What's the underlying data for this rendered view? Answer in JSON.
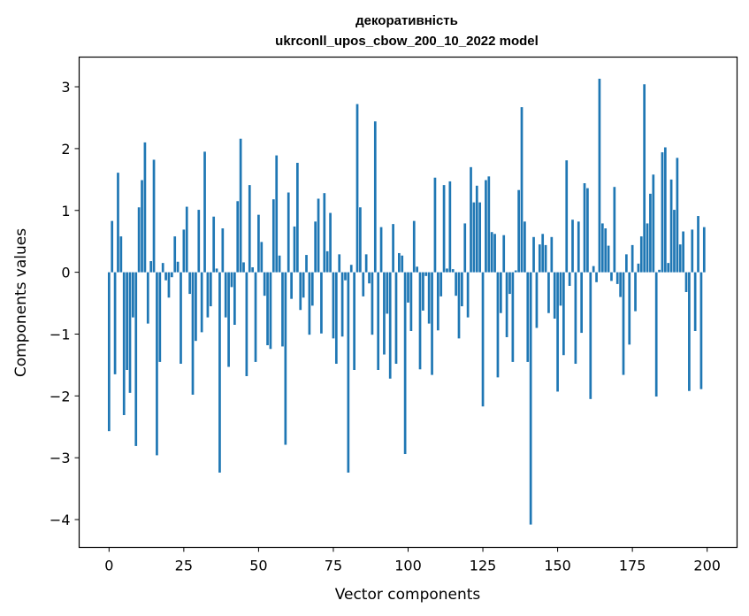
{
  "chart_data": {
    "type": "bar",
    "title": "декоративність",
    "subtitle": "ukrconll_upos_cbow_200_10_2022 model",
    "xlabel": "Vector components",
    "ylabel": "Components values",
    "xlim": [
      -10,
      210
    ],
    "ylim": [
      -4.45,
      3.48
    ],
    "xticks": [
      0,
      25,
      50,
      75,
      100,
      125,
      150,
      175,
      200
    ],
    "yticks": [
      -4,
      -3,
      -2,
      -1,
      0,
      1,
      2,
      3
    ],
    "grid": false,
    "color": "#1f77b4",
    "values": [
      -2.57,
      0.83,
      -1.65,
      1.61,
      0.58,
      -2.31,
      -1.58,
      -1.95,
      -0.73,
      -2.81,
      1.05,
      1.49,
      2.1,
      -0.83,
      0.18,
      1.82,
      -2.96,
      -1.45,
      0.15,
      -0.13,
      -0.41,
      -0.08,
      0.58,
      0.17,
      -1.48,
      0.69,
      1.06,
      -0.35,
      -1.98,
      -1.11,
      1.01,
      -0.97,
      1.95,
      -0.73,
      -0.55,
      0.9,
      0.06,
      -3.24,
      0.71,
      -0.73,
      -1.53,
      -0.24,
      -0.85,
      1.15,
      2.16,
      0.16,
      -1.68,
      1.41,
      0.08,
      -1.45,
      0.93,
      0.49,
      -0.38,
      -1.18,
      -1.24,
      1.18,
      1.89,
      0.27,
      -1.2,
      -2.79,
      1.29,
      -0.43,
      0.74,
      1.77,
      -0.61,
      -0.41,
      0.28,
      -1.01,
      -0.54,
      0.82,
      1.19,
      -0.99,
      1.28,
      0.34,
      0.96,
      -1.07,
      -1.48,
      0.29,
      -1.04,
      -0.13,
      -3.24,
      0.12,
      -1.58,
      2.72,
      1.05,
      -0.39,
      0.29,
      -0.18,
      -1.01,
      2.44,
      -1.58,
      0.73,
      -1.33,
      -0.67,
      -1.72,
      0.78,
      -1.48,
      0.31,
      0.27,
      -2.94,
      -0.49,
      -0.95,
      0.83,
      0.09,
      -1.57,
      -0.62,
      -0.06,
      -0.83,
      -1.66,
      1.53,
      -0.94,
      -0.39,
      1.41,
      0.06,
      1.47,
      0.05,
      -0.38,
      -1.07,
      -0.55,
      0.79,
      -0.73,
      1.7,
      1.13,
      1.4,
      1.13,
      -2.17,
      1.49,
      1.55,
      0.65,
      0.62,
      -1.7,
      -0.66,
      0.6,
      -1.05,
      -0.35,
      -1.45,
      0.03,
      1.33,
      2.67,
      0.82,
      -1.45,
      -4.08,
      0.57,
      -0.9,
      0.45,
      0.62,
      0.44,
      -0.66,
      0.57,
      -0.75,
      -1.93,
      -0.54,
      -1.34,
      1.81,
      -0.22,
      0.85,
      -1.48,
      0.82,
      -0.98,
      1.44,
      1.36,
      -2.05,
      0.1,
      -0.16,
      3.13,
      0.79,
      0.71,
      0.43,
      -0.14,
      1.38,
      -0.19,
      -0.4,
      -1.66,
      0.29,
      -1.17,
      0.44,
      -0.63,
      0.14,
      0.58,
      3.04,
      0.79,
      1.27,
      1.58,
      -2.01,
      0.04,
      1.94,
      2.02,
      0.15,
      1.5,
      1.01,
      1.85,
      0.45,
      0.66,
      -0.32,
      -1.92,
      0.69,
      -0.95,
      0.91,
      -1.89,
      0.73
    ]
  }
}
